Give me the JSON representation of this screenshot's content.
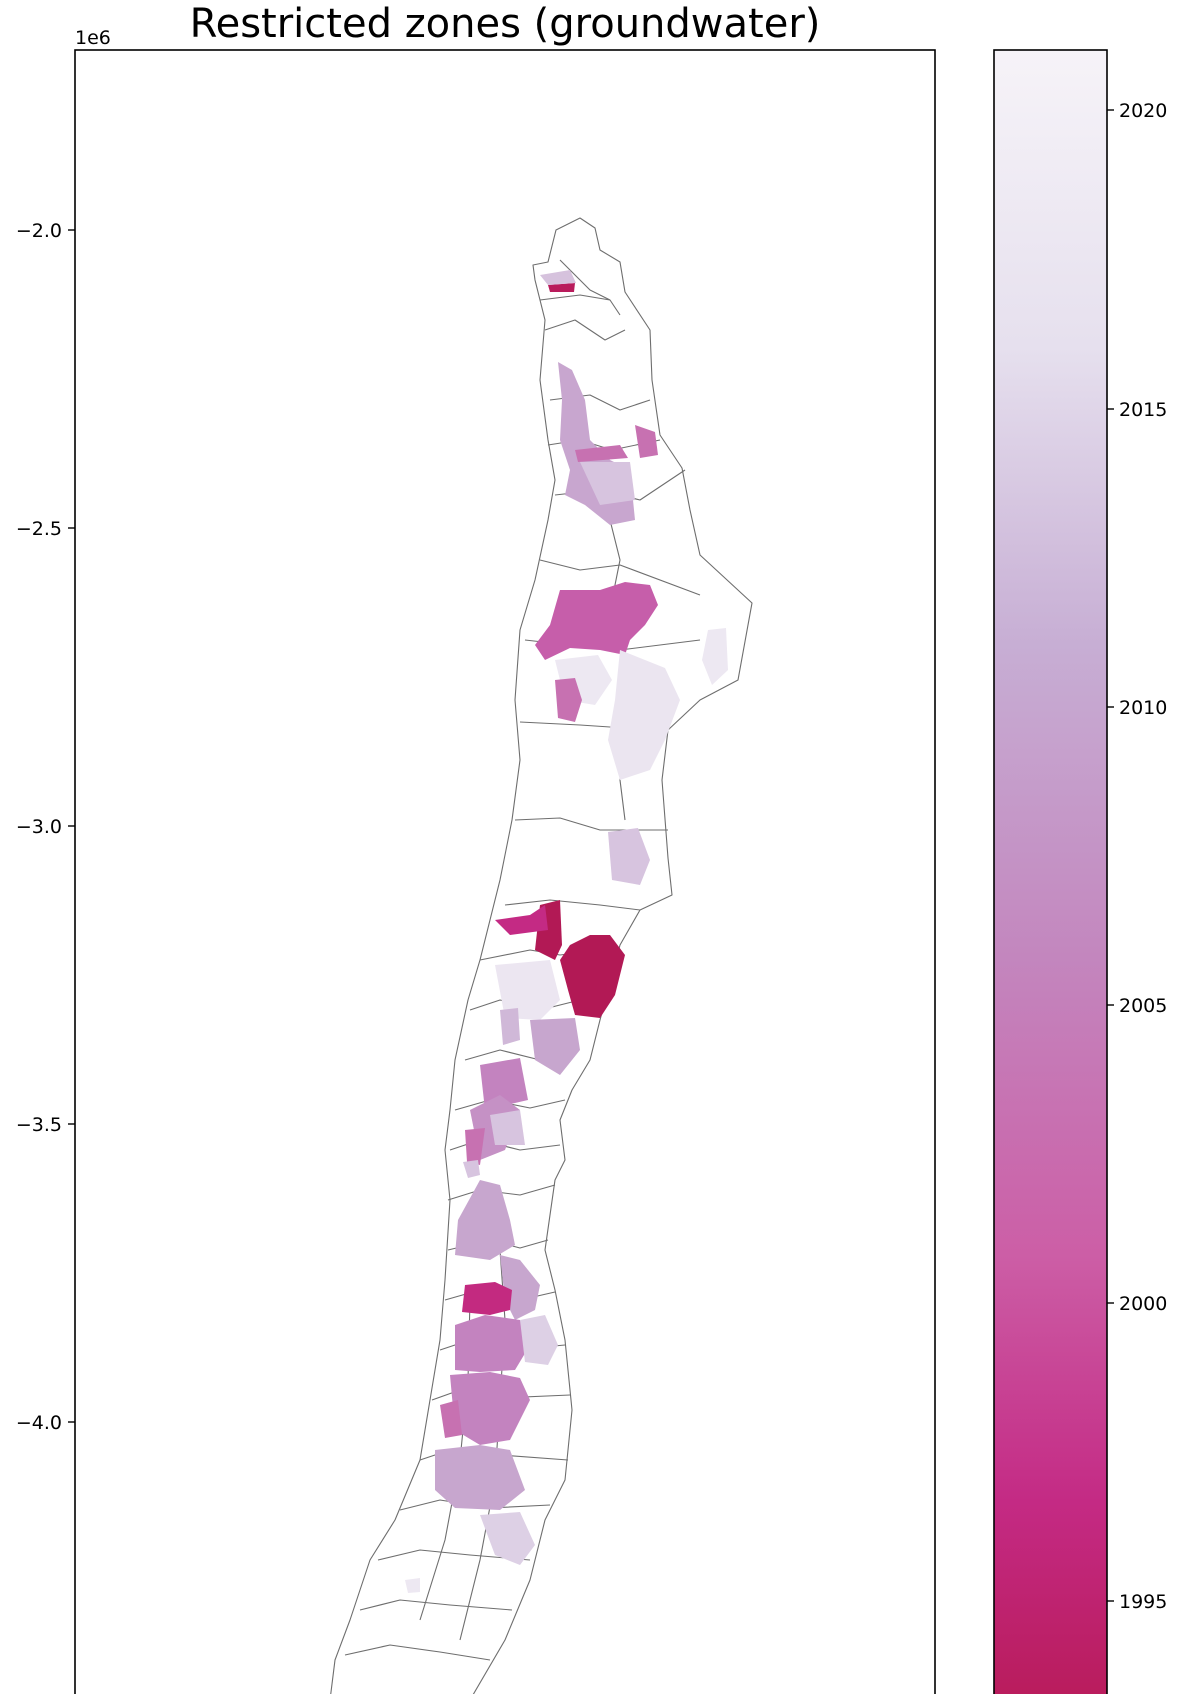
{
  "chart_data": {
    "type": "choropleth map",
    "title": "Restricted zones (groundwater)",
    "y_offset_label": "1e6",
    "y_axis": {
      "ticks": [
        -2.0,
        -2.5,
        -3.0,
        -3.5,
        -4.0
      ],
      "tick_labels": [
        "−2.0",
        "−2.5",
        "−3.0",
        "−3.5",
        "−4.0"
      ],
      "range": [
        -4.4,
        -1.7
      ]
    },
    "colorbar": {
      "ticks": [
        2020,
        2015,
        2010,
        2005,
        2000,
        1995
      ],
      "tick_labels": [
        "2020",
        "2015",
        "2010",
        "2005",
        "2000",
        "1995"
      ],
      "range": [
        1992.5,
        2021.3
      ],
      "colormap": [
        "#b91c5c",
        "#c42a84",
        "#cc5ea6",
        "#c386be",
        "#c7aed4",
        "#e6e0ee",
        "#f6f3f8"
      ]
    },
    "zones": [
      {
        "zone": "far-north-small-1",
        "y": -2.09,
        "year": 1996
      },
      {
        "zone": "far-north-small-2",
        "y": -2.09,
        "year": 2013
      },
      {
        "zone": "north-basin-1",
        "y": -2.35,
        "year": 2011
      },
      {
        "zone": "north-basin-2",
        "y": -2.38,
        "year": 2003
      },
      {
        "zone": "north-basin-3",
        "y": -2.48,
        "year": 2013
      },
      {
        "zone": "atacama-large",
        "y": -2.67,
        "year": 2002
      },
      {
        "zone": "atacama-east-1",
        "y": -2.78,
        "year": 2019
      },
      {
        "zone": "atacama-east-2",
        "y": -2.88,
        "year": 2018
      },
      {
        "zone": "atacama-small",
        "y": -2.8,
        "year": 2004
      },
      {
        "zone": "copiapo-1",
        "y": -3.05,
        "year": 2013
      },
      {
        "zone": "central-red-1",
        "y": -3.22,
        "year": 1994
      },
      {
        "zone": "central-red-2",
        "y": -3.17,
        "year": 2000
      },
      {
        "zone": "central-light-1",
        "y": -3.28,
        "year": 2019
      },
      {
        "zone": "central-mid-1",
        "y": -3.38,
        "year": 2010
      },
      {
        "zone": "central-mid-2",
        "y": -3.45,
        "year": 2006
      },
      {
        "zone": "central-mid-3",
        "y": -3.55,
        "year": 2013
      },
      {
        "zone": "south-1",
        "y": -3.72,
        "year": 2010
      },
      {
        "zone": "south-2",
        "y": -3.8,
        "year": 1998
      },
      {
        "zone": "south-3",
        "y": -3.92,
        "year": 2008
      },
      {
        "zone": "south-4",
        "y": -4.02,
        "year": 2007
      },
      {
        "zone": "south-5",
        "y": -4.12,
        "year": 2009
      },
      {
        "zone": "south-6",
        "y": -4.22,
        "year": 2014
      }
    ]
  }
}
